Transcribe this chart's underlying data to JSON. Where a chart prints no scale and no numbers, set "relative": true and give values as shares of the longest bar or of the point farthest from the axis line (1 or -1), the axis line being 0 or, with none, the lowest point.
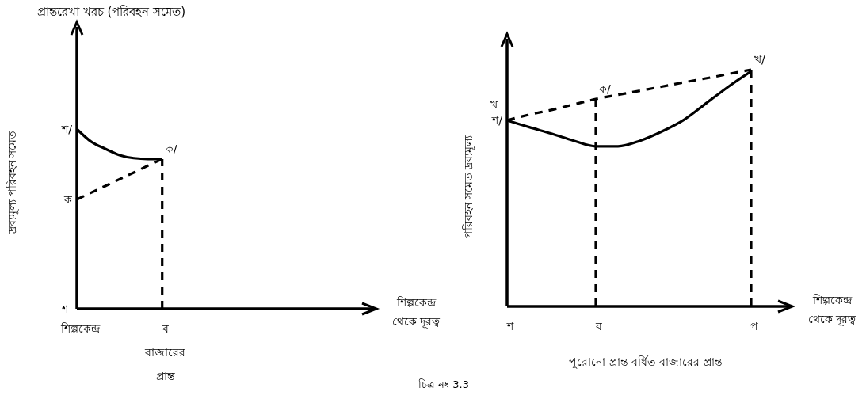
{
  "chart_data": [
    {
      "type": "line",
      "title": "প্রান্তরেখা খরচ (পরিবহন সমেত)",
      "ylabel": "দ্রব্যমূল্য পরিবহন সমেত",
      "xlabel": "শিল্পকেন্দ্র\nথেকে দূরত্ব",
      "relative": true,
      "categories": [
        "শিল্পকেন্দ্র",
        null,
        null,
        null,
        null,
        null,
        "ব\nবাজারের\nপ্রান্ত",
        null,
        null,
        null,
        null,
        null,
        null,
        null,
        null,
        null,
        null,
        null,
        null,
        null,
        null
      ],
      "series": [
        {
          "color": "#000000",
          "line_style": "solid",
          "values": [
            1,
            0.93,
            0.89,
            0.855,
            0.838,
            0.833,
            0.833,
            null,
            null,
            null,
            null,
            null,
            null,
            null,
            null,
            null,
            null,
            null,
            null,
            null,
            null
          ]
        },
        {
          "color": "#000000",
          "line_style": "dashed",
          "values": [
            0.608,
            0.646,
            0.683,
            0.721,
            0.758,
            0.796,
            0.833,
            null,
            null,
            null,
            null,
            null,
            null,
            null,
            null,
            null,
            null,
            null,
            null,
            null,
            null
          ]
        }
      ],
      "ref_lines": [
        {
          "axis": "x",
          "value": "ব\nবাজারের\nপ্রান্ত",
          "color": "#000000",
          "line_style": "dashed"
        }
      ],
      "annotations": [
        {
          "text": "শ/",
          "x": "শিল্পকেন্দ্র",
          "y": 1
        },
        {
          "text": "ক",
          "x": "শিল্পকেন্দ্র",
          "y": 0.608
        },
        {
          "text": "ক/",
          "x": "ব\nবাজারের\nপ্রান্ত",
          "y": 0.833
        },
        "শ"
      ]
    },
    {
      "type": "line",
      "ylabel": "পরিবহন সমেত দ্রব্যমূল্য",
      "xlabel": "শিল্পকেন্দ্র\nথেকে দূরত্ব",
      "relative": true,
      "categories": [
        "শ",
        null,
        null,
        null,
        "ব",
        null,
        null,
        null,
        null,
        null,
        null,
        "প",
        null
      ],
      "series": [
        {
          "color": "#000000",
          "line_style": "solid",
          "values": [
            0.786,
            0.757,
            0.73,
            0.7,
            0.676,
            0.676,
            0.7,
            0.74,
            0.79,
            0.86,
            0.93,
            0.993,
            null
          ]
        },
        {
          "color": "#000000",
          "line_style": "dashed",
          "values": [
            0.786,
            0.81,
            0.83,
            0.853,
            0.876,
            0.894,
            0.911,
            0.929,
            0.947,
            0.964,
            0.982,
            1,
            null
          ]
        }
      ],
      "ref_lines": [
        {
          "axis": "x",
          "value": "ব",
          "color": "#000000",
          "line_style": "dashed"
        },
        {
          "axis": "x",
          "value": "প",
          "color": "#000000",
          "line_style": "dashed"
        }
      ],
      "annotations": [
        "পুরোনো প্রান্ত বর্ধিত বাজারের প্রান্ত",
        "চিত্র নং 3.3",
        "খ",
        {
          "text": "শ/",
          "x": "শ",
          "y": 0.786
        },
        {
          "text": "ক/",
          "x": "ব",
          "y": 0.876
        },
        {
          "text": "খ/",
          "x": "প",
          "y": 1
        }
      ]
    }
  ]
}
